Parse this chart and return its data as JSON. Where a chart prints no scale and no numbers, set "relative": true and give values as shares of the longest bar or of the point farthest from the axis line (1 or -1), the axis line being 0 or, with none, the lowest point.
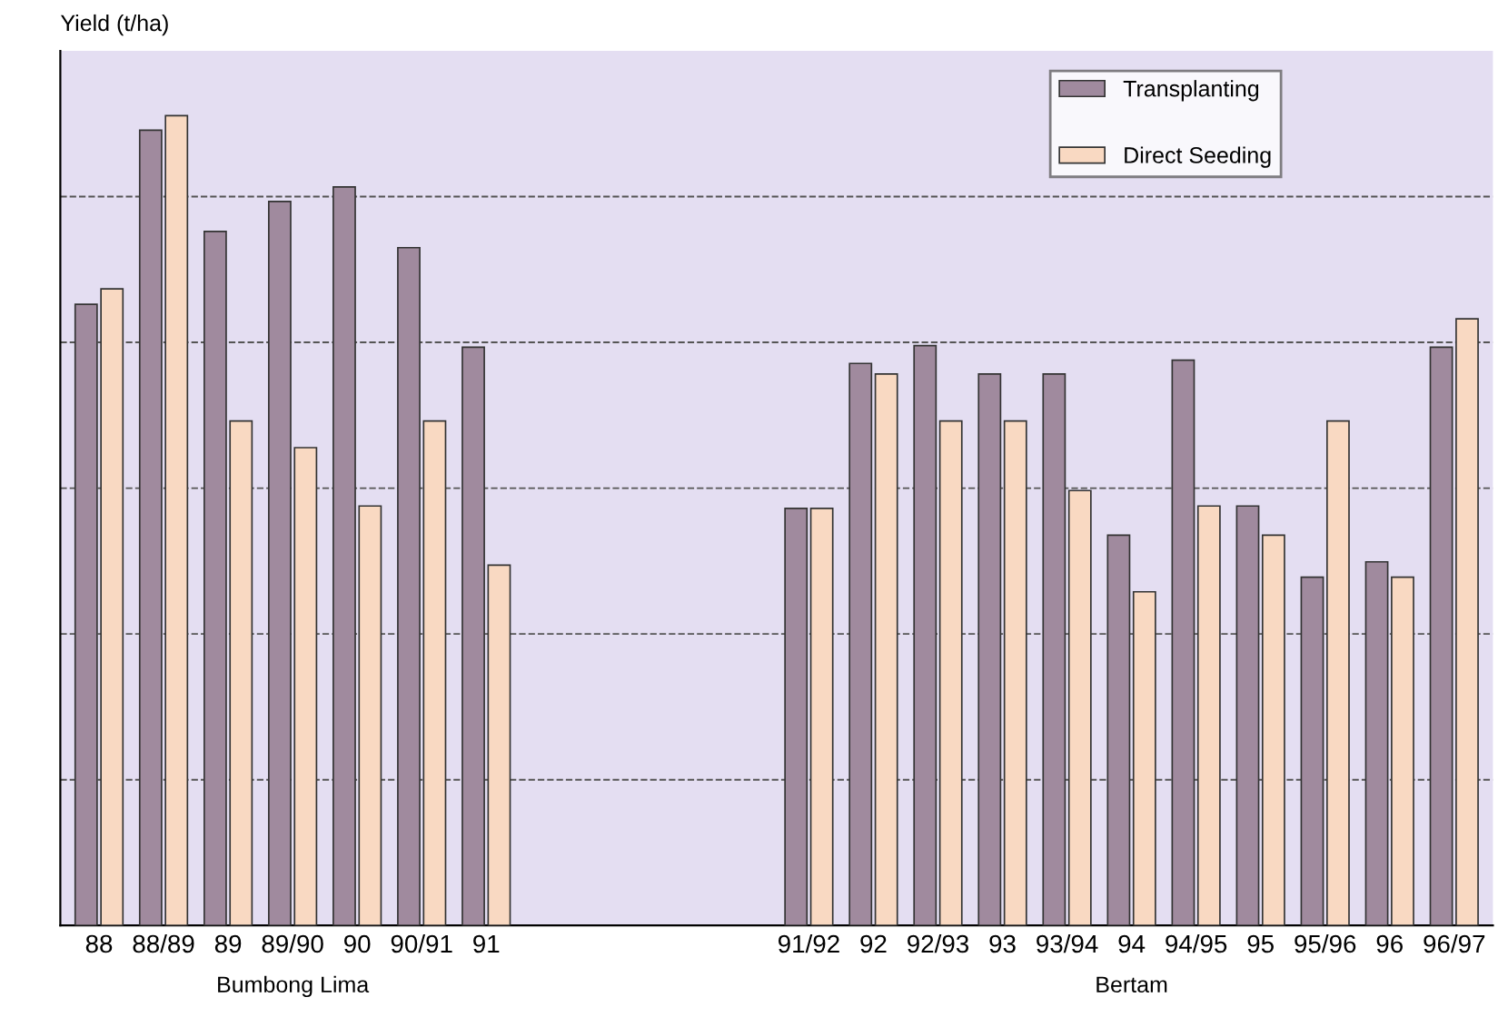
{
  "chart_data": {
    "type": "bar",
    "ylabel": "Yield (t/ha)",
    "relative": true,
    "categories": [
      "88",
      "88/89",
      "89",
      "89/90",
      "90",
      "90/91",
      "91",
      null,
      null,
      null,
      null,
      "91/92",
      "92",
      "92/93",
      "93",
      "93/94",
      "94",
      "94/95",
      "95",
      "95/96",
      "96",
      "96/97"
    ],
    "series": [
      {
        "name": "Transplanting",
        "color": "#a08a9e",
        "values": [
          0.767,
          0.982,
          0.857,
          0.894,
          0.912,
          0.837,
          0.714,
          null,
          null,
          null,
          null,
          0.515,
          0.694,
          0.716,
          0.681,
          0.681,
          0.482,
          0.698,
          0.518,
          0.43,
          0.449,
          0.714
        ]
      },
      {
        "name": "Direct Seeding",
        "color": "#f9d9c2",
        "values": [
          0.786,
          1,
          0.623,
          0.59,
          0.518,
          0.623,
          0.445,
          null,
          null,
          null,
          null,
          0.515,
          0.681,
          0.623,
          0.623,
          0.537,
          0.412,
          0.518,
          0.482,
          0.623,
          0.43,
          0.749
        ]
      }
    ],
    "annotations": [
      "Bumbong Lima",
      "Bertam"
    ],
    "grid": "y",
    "legend": "top right"
  }
}
